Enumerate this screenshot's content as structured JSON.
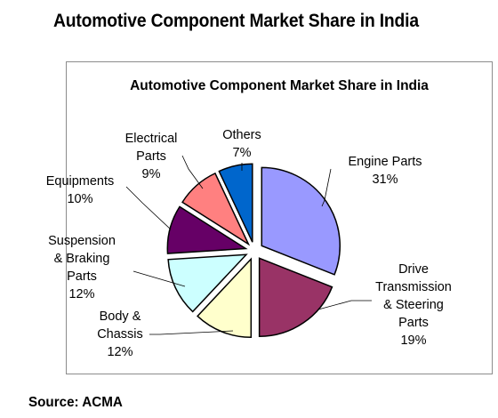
{
  "page_title": "Automotive Component Market Share in India",
  "source": "Source: ACMA",
  "chart_data": {
    "type": "pie",
    "title": "Automotive Component Market Share in India",
    "exploded": true,
    "slices": [
      {
        "label_lines": [
          "Engine Parts"
        ],
        "value": 31,
        "value_label": "31%",
        "color": "#9999ff"
      },
      {
        "label_lines": [
          "Drive",
          "Transmission",
          "& Steering",
          "Parts"
        ],
        "value": 19,
        "value_label": "19%",
        "color": "#993366"
      },
      {
        "label_lines": [
          "Body &",
          "Chassis"
        ],
        "value": 12,
        "value_label": "12%",
        "color": "#ffffcc"
      },
      {
        "label_lines": [
          "Suspension",
          "& Braking",
          "Parts"
        ],
        "value": 12,
        "value_label": "12%",
        "color": "#ccffff"
      },
      {
        "label_lines": [
          "Equipments"
        ],
        "value": 10,
        "value_label": "10%",
        "color": "#660066"
      },
      {
        "label_lines": [
          "Electrical",
          "Parts"
        ],
        "value": 9,
        "value_label": "9%",
        "color": "#ff8080"
      },
      {
        "label_lines": [
          "Others"
        ],
        "value": 7,
        "value_label": "7%",
        "color": "#0066cc"
      }
    ]
  }
}
